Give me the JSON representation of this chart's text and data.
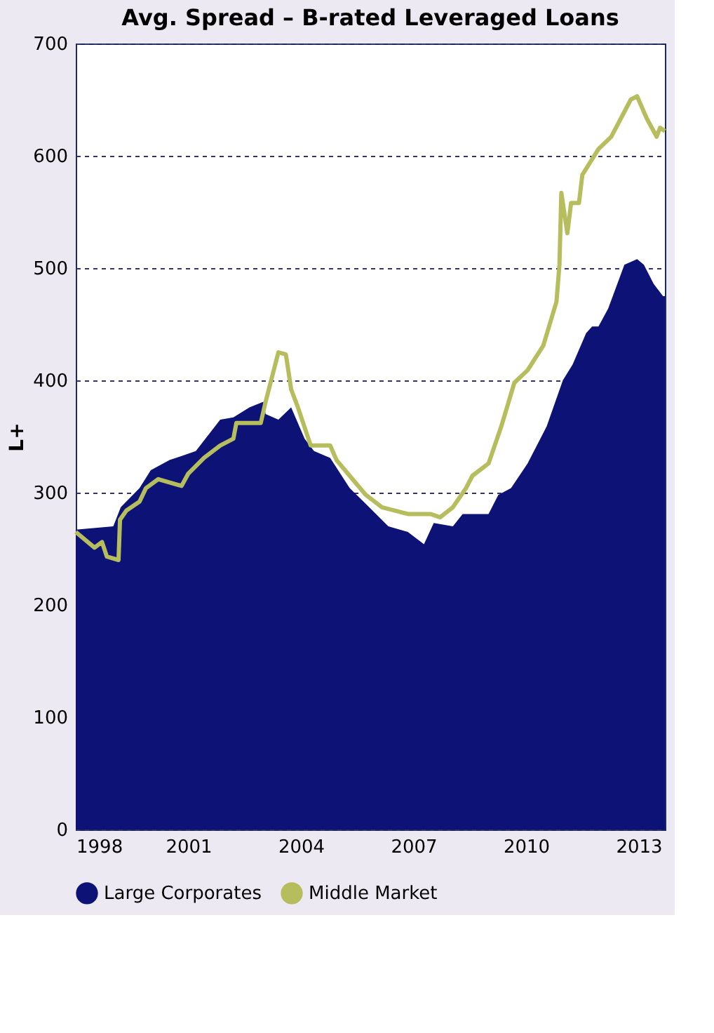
{
  "chart_data": {
    "type": "area",
    "title": "Avg. Spread – B-rated Leveraged Loans",
    "ylabel": "L+",
    "xlim": [
      1998,
      2013.7
    ],
    "xticks": [
      1998,
      2001,
      2004,
      2007,
      2010,
      2013
    ],
    "ylim": [
      0,
      700
    ],
    "yticks": [
      0,
      100,
      200,
      300,
      400,
      500,
      600,
      700
    ],
    "grid": "y",
    "legend": "bottom",
    "line_style": "solid",
    "marker": "none",
    "series": [
      {
        "name": "Large Corporates",
        "color": "#0d1277",
        "x": [
          1998.0,
          1999.0,
          1999.2,
          1999.7,
          2000.0,
          2000.5,
          2001.2,
          2001.85,
          2002.2,
          2002.63,
          2003.0,
          2003.06,
          2003.4,
          2003.74,
          2004.1,
          2004.35,
          2004.78,
          2005.3,
          2005.73,
          2006.33,
          2006.85,
          2007.28,
          2007.54,
          2008.05,
          2008.31,
          2008.57,
          2009.0,
          2009.26,
          2009.6,
          2010.04,
          2010.55,
          2010.98,
          2011.24,
          2011.6,
          2011.76,
          2011.93,
          2012.19,
          2012.62,
          2012.96,
          2013.14,
          2013.4,
          2013.65,
          2013.7
        ],
        "values": [
          267,
          270,
          287,
          304,
          320,
          329,
          337,
          365,
          367,
          376,
          381,
          370,
          365,
          376,
          348,
          337,
          331,
          304,
          290,
          270,
          265,
          254,
          273,
          270,
          281,
          281,
          281,
          298,
          304,
          326,
          359,
          400,
          414,
          442,
          448,
          448,
          464,
          503,
          508,
          503,
          486,
          475,
          475
        ]
      },
      {
        "name": "Middle Market",
        "type": "line",
        "color": "#b5bd5c",
        "x": [
          1998.0,
          1998.5,
          1998.7,
          1998.83,
          1999.14,
          1999.18,
          1999.35,
          1999.7,
          1999.87,
          2000.2,
          2000.82,
          2001.0,
          2001.42,
          2001.85,
          2002.2,
          2002.28,
          2002.93,
          2003.06,
          2003.4,
          2003.6,
          2003.74,
          2003.92,
          2004.26,
          2004.78,
          2004.95,
          2005.3,
          2005.73,
          2006.16,
          2006.85,
          2007.45,
          2007.71,
          2008.05,
          2008.4,
          2008.57,
          2009.0,
          2009.34,
          2009.69,
          2010.04,
          2010.46,
          2010.81,
          2010.89,
          2010.94,
          2011.1,
          2011.2,
          2011.41,
          2011.5,
          2011.93,
          2012.27,
          2012.79,
          2012.96,
          2013.22,
          2013.48,
          2013.57,
          2013.7
        ],
        "values": [
          265,
          251,
          256,
          243,
          240,
          276,
          284,
          292,
          304,
          312,
          306,
          317,
          331,
          342,
          348,
          362,
          362,
          381,
          425,
          423,
          392,
          376,
          342,
          342,
          329,
          315,
          298,
          287,
          281,
          281,
          278,
          287,
          304,
          315,
          326,
          359,
          398,
          409,
          431,
          470,
          503,
          567,
          531,
          558,
          558,
          583,
          606,
          617,
          650,
          653,
          633,
          617,
          625,
          622
        ]
      }
    ]
  }
}
